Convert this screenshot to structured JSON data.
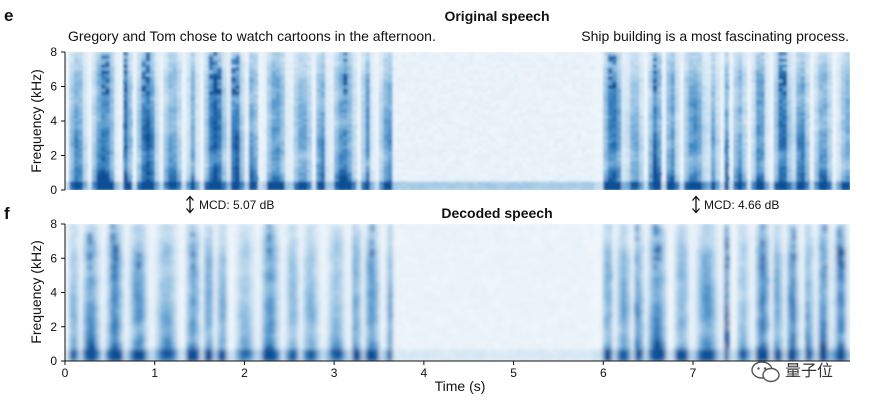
{
  "chart_data": [
    {
      "type": "heatmap",
      "panel_label": "e",
      "title": "Original speech",
      "sentences": [
        "Gregory and Tom chose to watch cartoons in the afternoon.",
        "Ship building is a most fascinating process."
      ],
      "ylabel": "Frequency (kHz)",
      "yticks": [
        0,
        2,
        4,
        6,
        8
      ],
      "ylim": [
        0,
        8
      ],
      "xlim": [
        0,
        8.75
      ],
      "colormap": [
        "#ffffff",
        "#d6e7f4",
        "#8fbde0",
        "#3d86c2",
        "#0d4f95"
      ],
      "speech_segments": [
        [
          0.0,
          3.6
        ],
        [
          5.95,
          8.75
        ]
      ],
      "mcd_annotations": [
        {
          "text": "MCD: 5.07 dB",
          "x": 1.35
        },
        {
          "text": "MCD: 4.66 dB",
          "x": 7.1
        }
      ]
    },
    {
      "type": "heatmap",
      "panel_label": "f",
      "title": "Decoded speech",
      "ylabel": "Frequency (kHz)",
      "xlabel": "Time (s)",
      "yticks": [
        0,
        2,
        4,
        6,
        8
      ],
      "xticks": [
        0,
        1,
        2,
        3,
        4,
        5,
        6,
        7
      ],
      "ylim": [
        0,
        8
      ],
      "xlim": [
        0,
        8.75
      ],
      "colormap": [
        "#ffffff",
        "#d6e7f4",
        "#8fbde0",
        "#3d86c2",
        "#0d4f95"
      ],
      "speech_segments": [
        [
          0.0,
          3.6
        ],
        [
          5.95,
          8.75
        ]
      ]
    }
  ],
  "watermark": {
    "text": "量子位",
    "icon": "wechat-icon"
  }
}
